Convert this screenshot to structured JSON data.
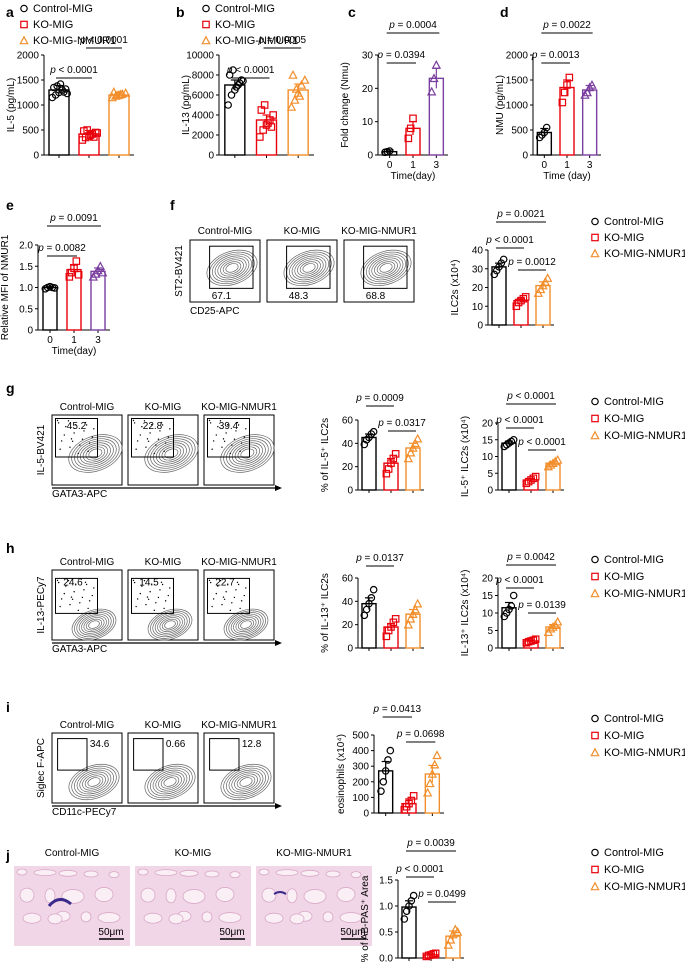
{
  "colors": {
    "control": "#000000",
    "ko": "#e8000b",
    "rescue": "#f28e2b",
    "purple": "#7b3fa0",
    "day3": "#7b3fa0"
  },
  "legend": {
    "control": "Control-MIG",
    "ko": "KO-MIG",
    "rescue": "KO-MIG-NMUR1"
  },
  "panels": {
    "a": "a",
    "b": "b",
    "c": "c",
    "d": "d",
    "e": "e",
    "f": "f",
    "g": "g",
    "h": "h",
    "i": "i",
    "j": "j"
  },
  "flow": {
    "f": {
      "ylabel": "ST2-BV421",
      "xlabel": "CD25-APC",
      "values": [
        "67.1",
        "48.3",
        "68.8"
      ]
    },
    "g": {
      "ylabel": "IL-5-BV421",
      "xlabel": "GATA3-APC",
      "values": [
        "45.2",
        "22.8",
        "39.4"
      ]
    },
    "h": {
      "ylabel": "IL-13-PECy7",
      "xlabel": "GATA3-APC",
      "values": [
        "24.6",
        "14.5",
        "22.7"
      ]
    },
    "i": {
      "ylabel": "Siglec F-APC",
      "xlabel": "CD11c-PECy7",
      "values": [
        "34.6",
        "0.66",
        "12.8"
      ]
    }
  },
  "histology": {
    "labels": [
      "Control-MIG",
      "KO-MIG",
      "KO-MIG-NMUR1"
    ],
    "scale": "50μm"
  },
  "chart_data": [
    {
      "id": "a",
      "type": "bar",
      "ylabel": "IL-5 (pg/mL)",
      "ylim": [
        0,
        2000
      ],
      "ticks": [
        "0",
        "500",
        "1000",
        "1500",
        "2000"
      ],
      "categories": [
        "Control-MIG",
        "KO-MIG",
        "KO-MIG-NMUR1"
      ],
      "values": [
        1300,
        420,
        1200
      ],
      "errors": [
        90,
        70,
        60
      ],
      "points": [
        [
          1150,
          1200,
          1250,
          1300,
          1320,
          1350,
          1380,
          1420,
          1260,
          1230
        ],
        [
          300,
          350,
          380,
          420,
          450,
          480,
          500,
          400,
          360,
          440
        ],
        [
          1150,
          1180,
          1200,
          1220,
          1240,
          1260,
          1190,
          1210
        ]
      ],
      "brackets": [
        {
          "from": 0,
          "to": 1,
          "label": "p < 0.0001"
        },
        {
          "from": 1,
          "to": 2,
          "label": "p < 0.0001"
        }
      ]
    },
    {
      "id": "b",
      "type": "bar",
      "ylabel": "IL-13 (pg/mL)",
      "ylim": [
        0,
        10000
      ],
      "ticks": [
        "0",
        "2000",
        "4000",
        "6000",
        "8000",
        "10000"
      ],
      "categories": [
        "Control-MIG",
        "KO-MIG",
        "KO-MIG-NMUR1"
      ],
      "values": [
        7000,
        3500,
        6500
      ],
      "errors": [
        500,
        500,
        600
      ],
      "points": [
        [
          5000,
          6000,
          6500,
          7000,
          7500,
          8000,
          8500,
          6800,
          7200,
          7400
        ],
        [
          1800,
          2500,
          3000,
          3500,
          4000,
          4500,
          5000,
          3200,
          2800
        ],
        [
          4800,
          5500,
          6200,
          7000,
          7500,
          8000,
          6600,
          5900
        ]
      ],
      "brackets": [
        {
          "from": 0,
          "to": 1,
          "label": "p < 0.0001"
        },
        {
          "from": 1,
          "to": 2,
          "label": "p = 0.0005"
        }
      ]
    },
    {
      "id": "c",
      "type": "bar",
      "ylabel": "Fold change (Nmu)",
      "xlabel": "Time(day)",
      "ylim": [
        0,
        30
      ],
      "ticks": [
        "0",
        "10",
        "20",
        "30"
      ],
      "categories": [
        "0",
        "1",
        "3"
      ],
      "values": [
        1,
        8,
        23
      ],
      "errors": [
        0.5,
        2,
        3
      ],
      "points": [
        [
          0.8,
          1.0,
          1.2
        ],
        [
          5,
          8,
          11
        ],
        [
          19,
          23,
          27
        ]
      ],
      "brackets": [
        {
          "from": 0,
          "to": 1,
          "label": "p = 0.0394"
        },
        {
          "from": 0,
          "to": 2,
          "label": "p = 0.0004"
        }
      ]
    },
    {
      "id": "d",
      "type": "bar",
      "ylabel": "NMU (pg/mL)",
      "xlabel": "Time (day)",
      "ylim": [
        0,
        2000
      ],
      "ticks": [
        "0",
        "500",
        "1000",
        "1500",
        "2000"
      ],
      "categories": [
        "0",
        "1",
        "3"
      ],
      "values": [
        450,
        1350,
        1300
      ],
      "errors": [
        80,
        150,
        90
      ],
      "points": [
        [
          350,
          400,
          450,
          550
        ],
        [
          1050,
          1250,
          1400,
          1550
        ],
        [
          1200,
          1250,
          1350,
          1400
        ]
      ],
      "brackets": [
        {
          "from": 0,
          "to": 1,
          "label": "p = 0.0013"
        },
        {
          "from": 0,
          "to": 2,
          "label": "p = 0.0022"
        }
      ]
    },
    {
      "id": "e",
      "type": "bar",
      "ylabel": "Relative MFI of NMUR1",
      "xlabel": "Time(day)",
      "ylim": [
        0,
        2
      ],
      "ticks": [
        "0",
        "0.5",
        "1.0",
        "1.5",
        "2.0"
      ],
      "categories": [
        "0",
        "1",
        "3"
      ],
      "values": [
        1.0,
        1.42,
        1.38
      ],
      "errors": [
        0.03,
        0.12,
        0.08
      ],
      "points": [
        [
          0.97,
          1.0,
          1.02,
          1.0,
          0.99
        ],
        [
          1.25,
          1.35,
          1.45,
          1.62,
          1.3
        ],
        [
          1.25,
          1.32,
          1.4,
          1.5,
          1.35
        ]
      ],
      "brackets": [
        {
          "from": 0,
          "to": 1,
          "label": "p = 0.0082"
        },
        {
          "from": 0,
          "to": 2,
          "label": "p = 0.0091"
        }
      ]
    },
    {
      "id": "f",
      "type": "bar",
      "ylabel": "ILC2s (x10⁴)",
      "ylim": [
        0,
        40
      ],
      "ticks": [
        "0",
        "10",
        "20",
        "30",
        "40"
      ],
      "categories": [
        "Control-MIG",
        "KO-MIG",
        "KO-MIG-NMUR1"
      ],
      "values": [
        31,
        13,
        21
      ],
      "errors": [
        2,
        1,
        2
      ],
      "points": [
        [
          27,
          29,
          31,
          33,
          35
        ],
        [
          10,
          12,
          13,
          14,
          15
        ],
        [
          17,
          19,
          21,
          23,
          25
        ]
      ],
      "brackets": [
        {
          "from": 1,
          "to": 2,
          "label": "p = 0.0012"
        },
        {
          "from": 0,
          "to": 1,
          "label": "p < 0.0001"
        },
        {
          "from": 0,
          "to": 2,
          "label": "p = 0.0021"
        }
      ]
    },
    {
      "id": "g1",
      "type": "bar",
      "ylabel": "% of IL-5⁺ ILC2s",
      "ylim": [
        0,
        60
      ],
      "ticks": [
        "0",
        "20",
        "40",
        "60"
      ],
      "categories": [
        "Control-MIG",
        "KO-MIG",
        "KO-MIG-NMUR1"
      ],
      "values": [
        45,
        23,
        36
      ],
      "errors": [
        3,
        4,
        4
      ],
      "points": [
        [
          39,
          43,
          45,
          48,
          50
        ],
        [
          14,
          18,
          23,
          27,
          31
        ],
        [
          27,
          32,
          36,
          40,
          44
        ]
      ],
      "brackets": [
        {
          "from": 1,
          "to": 2,
          "label": "p = 0.0317"
        },
        {
          "from": 0,
          "to": 1,
          "label": "p = 0.0009"
        }
      ]
    },
    {
      "id": "g2",
      "type": "bar",
      "ylabel": "IL-5⁺ ILC2s (x10⁴)",
      "ylim": [
        0,
        20
      ],
      "ticks": [
        "0",
        "5",
        "10",
        "15",
        "20"
      ],
      "categories": [
        "Control-MIG",
        "KO-MIG",
        "KO-MIG-NMUR1"
      ],
      "values": [
        14,
        3,
        8
      ],
      "errors": [
        0.6,
        0.4,
        0.5
      ],
      "points": [
        [
          13,
          13.5,
          14,
          14.5,
          15
        ],
        [
          2,
          2.5,
          3,
          3.5,
          4
        ],
        [
          7,
          7.5,
          8,
          8.5,
          9
        ]
      ],
      "brackets": [
        {
          "from": 1,
          "to": 2,
          "label": "p < 0.0001"
        },
        {
          "from": 0,
          "to": 1,
          "label": "p < 0.0001"
        },
        {
          "from": 0,
          "to": 2,
          "label": "p < 0.0001"
        }
      ]
    },
    {
      "id": "h1",
      "type": "bar",
      "ylabel": "% of IL-13⁺ ILC2s",
      "ylim": [
        0,
        60
      ],
      "ticks": [
        "0",
        "20",
        "40",
        "60"
      ],
      "categories": [
        "Control-MIG",
        "KO-MIG",
        "KO-MIG-NMUR1"
      ],
      "values": [
        38,
        18,
        29
      ],
      "errors": [
        5,
        3,
        4
      ],
      "points": [
        [
          28,
          33,
          38,
          43,
          50
        ],
        [
          10,
          15,
          18,
          22,
          25
        ],
        [
          20,
          25,
          29,
          33,
          38
        ]
      ],
      "brackets": [
        {
          "from": 0,
          "to": 1,
          "label": "p = 0.0137"
        }
      ]
    },
    {
      "id": "h2",
      "type": "bar",
      "ylabel": "IL-13⁺ ILC2s (x10⁴)",
      "ylim": [
        0,
        20
      ],
      "ticks": [
        "0",
        "5",
        "10",
        "15",
        "20"
      ],
      "categories": [
        "Control-MIG",
        "KO-MIG",
        "KO-MIG-NMUR1"
      ],
      "values": [
        11.5,
        2,
        6
      ],
      "errors": [
        1.5,
        0.3,
        0.7
      ],
      "points": [
        [
          9,
          10,
          11,
          12,
          15
        ],
        [
          1.5,
          1.8,
          2,
          2.2,
          2.5
        ],
        [
          4.5,
          5.5,
          6,
          6.5,
          7.5
        ]
      ],
      "brackets": [
        {
          "from": 1,
          "to": 2,
          "label": "p = 0.0139"
        },
        {
          "from": 0,
          "to": 1,
          "label": "p < 0.0001"
        },
        {
          "from": 0,
          "to": 2,
          "label": "p = 0.0042"
        }
      ]
    },
    {
      "id": "i",
      "type": "bar",
      "ylabel": "eosinophils (x10⁴)",
      "ylim": [
        0,
        500
      ],
      "ticks": [
        "0",
        "100",
        "200",
        "300",
        "400",
        "500"
      ],
      "categories": [
        "Control-MIG",
        "KO-MIG",
        "KO-MIG-NMUR1"
      ],
      "values": [
        270,
        60,
        250
      ],
      "errors": [
        60,
        30,
        55
      ],
      "points": [
        [
          140,
          200,
          270,
          340,
          400
        ],
        [
          20,
          40,
          60,
          80,
          110
        ],
        [
          130,
          190,
          250,
          310,
          370
        ]
      ],
      "brackets": [
        {
          "from": 1,
          "to": 2,
          "label": "p = 0.0698"
        },
        {
          "from": 0,
          "to": 1,
          "label": "p = 0.0413"
        }
      ]
    },
    {
      "id": "j",
      "type": "bar",
      "ylabel": "% of AB-PAS⁺ Area",
      "ylim": [
        0,
        1.5
      ],
      "ticks": [
        "0.0",
        "0.5",
        "1.0",
        "1.5"
      ],
      "categories": [
        "Control-MIG",
        "KO-MIG",
        "KO-MIG-NMUR1"
      ],
      "values": [
        0.98,
        0.06,
        0.42
      ],
      "errors": [
        0.12,
        0.02,
        0.1
      ],
      "points": [
        [
          0.75,
          0.9,
          1.0,
          1.1,
          1.2
        ],
        [
          0.03,
          0.05,
          0.06,
          0.08,
          0.09
        ],
        [
          0.25,
          0.35,
          0.45,
          0.55,
          0.5
        ]
      ],
      "brackets": [
        {
          "from": 1,
          "to": 2,
          "label": "p = 0.0499"
        },
        {
          "from": 0,
          "to": 1,
          "label": "p < 0.0001"
        },
        {
          "from": 0,
          "to": 2,
          "label": "p = 0.0039"
        }
      ]
    }
  ]
}
